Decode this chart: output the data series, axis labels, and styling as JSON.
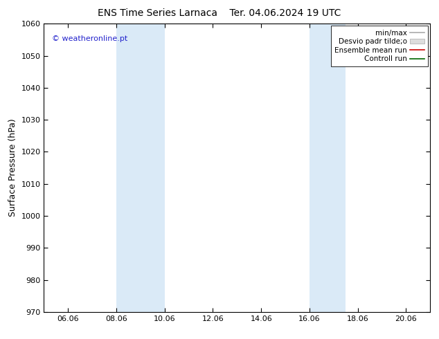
{
  "title": "ENS Time Series Larnaca",
  "title2": "Ter. 04.06.2024 19 UTC",
  "ylabel": "Surface Pressure (hPa)",
  "ylim": [
    970,
    1060
  ],
  "yticks": [
    970,
    980,
    990,
    1000,
    1010,
    1020,
    1030,
    1040,
    1050,
    1060
  ],
  "xtick_labels": [
    "06.06",
    "08.06",
    "10.06",
    "12.06",
    "14.06",
    "16.06",
    "18.06",
    "20.06"
  ],
  "xtick_positions": [
    1,
    3,
    5,
    7,
    9,
    11,
    13,
    15
  ],
  "xlim": [
    0,
    16
  ],
  "shaded_regions": [
    {
      "x_start": 3,
      "x_end": 5
    },
    {
      "x_start": 11,
      "x_end": 12.5
    }
  ],
  "shaded_color": "#daeaf7",
  "watermark": "© weatheronline.pt",
  "watermark_color": "#2222cc",
  "legend_entries": [
    {
      "label": "min/max",
      "color": "#aaaaaa",
      "style": "line"
    },
    {
      "label": "Desvio padr tilde;o",
      "color": "#cccccc",
      "style": "rect"
    },
    {
      "label": "Ensemble mean run",
      "color": "#cc0000",
      "style": "line"
    },
    {
      "label": "Controll run",
      "color": "#006600",
      "style": "line"
    }
  ],
  "background_color": "#ffffff",
  "title_fontsize": 10,
  "tick_fontsize": 8,
  "ylabel_fontsize": 9,
  "legend_fontsize": 7.5
}
